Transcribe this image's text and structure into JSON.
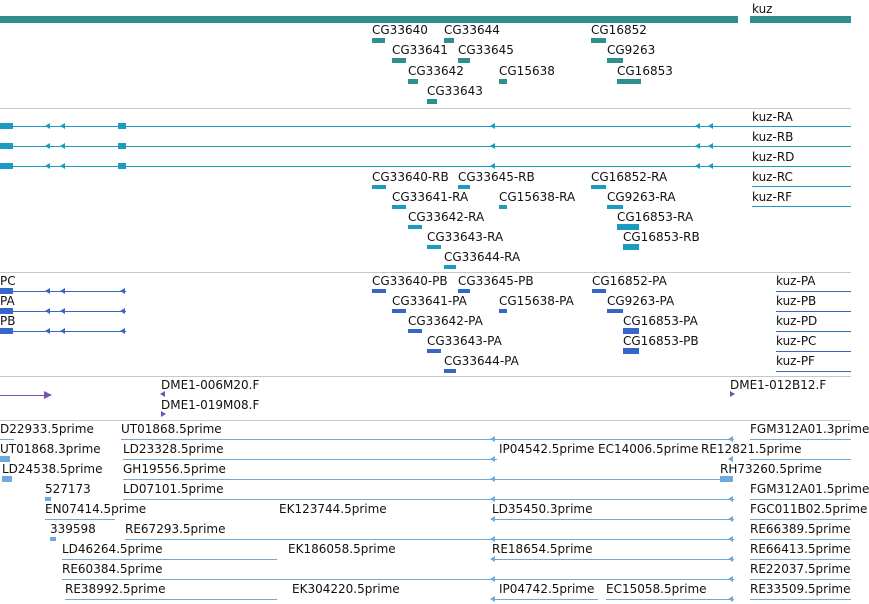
{
  "colors": {
    "gene": "#2f8f8f",
    "transcript": "#1a9bbf",
    "protein": "#3566c8",
    "clone": "#7a4fb8",
    "est": "#6fa9dc",
    "separator": "#c8c8c8"
  },
  "gene_track": {
    "labels": [
      "kuz",
      "CG33640",
      "CG33644",
      "CG16852",
      "CG33641",
      "CG33645",
      "CG9263",
      "CG33642",
      "CG15638",
      "CG16853",
      "CG33643"
    ]
  },
  "transcript_track": {
    "labels": [
      "kuz-RA",
      "kuz-RB",
      "kuz-RD",
      "kuz-RC",
      "kuz-RF",
      "CG33640-RB",
      "CG33645-RB",
      "CG16852-RA",
      "CG33641-RA",
      "CG15638-RA",
      "CG9263-RA",
      "CG33642-RA",
      "CG16853-RA",
      "CG33643-RA",
      "CG16853-RB",
      "CG33644-RA"
    ]
  },
  "protein_track": {
    "labels": [
      "PC",
      "PA",
      "PB",
      "CG33640-PB",
      "CG33645-PB",
      "CG16852-PA",
      "CG33641-PA",
      "CG15638-PA",
      "CG9263-PA",
      "CG33642-PA",
      "CG16853-PA",
      "CG33643-PA",
      "CG16853-PB",
      "CG33644-PA",
      "kuz-PA",
      "kuz-PB",
      "kuz-PD",
      "kuz-PC",
      "kuz-PF"
    ]
  },
  "clone_track": {
    "labels": [
      "DME1-006M20.F",
      "DME1-019M08.F",
      "DME1-012B12.F"
    ]
  },
  "est_track": {
    "labels": [
      "D22933.5prime",
      "UT01868.5prime",
      "FGM312A01.3prime",
      "UT01868.3prime",
      "LD23328.5prime",
      "IP04542.5prime",
      "EC14006.5prime",
      "RE12821.5prime",
      "LD24538.5prime",
      "GH19556.5prime",
      "RH73260.5prime",
      "527173",
      "LD07101.5prime",
      "FGM312A01.5prime",
      "EN07414.5prime",
      "EK123744.5prime",
      "LD35450.3prime",
      "FGC011B02.5prime",
      "339598",
      "RE67293.5prime",
      "RE66389.5prime",
      "LD46264.5prime",
      "EK186058.5prime",
      "RE18654.5prime",
      "RE66413.5prime",
      "RE60384.5prime",
      "RE22037.5prime",
      "RE38992.5prime",
      "EK304220.5prime",
      "IP04742.5prime",
      "EC15058.5prime",
      "RE33509.5prime"
    ]
  }
}
